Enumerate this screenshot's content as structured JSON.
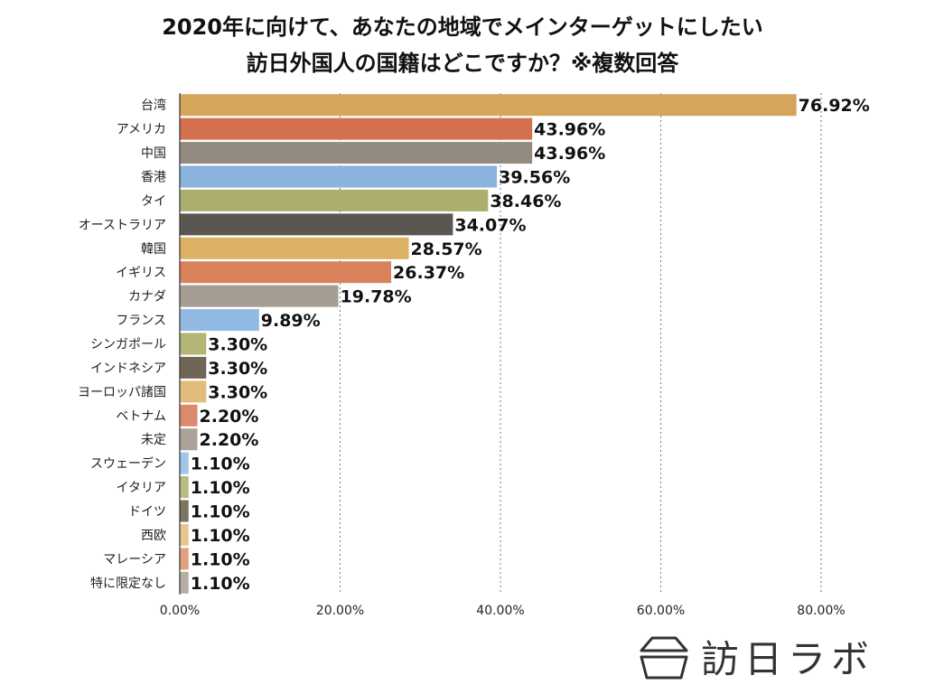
{
  "title": {
    "line1": "2020年に向けて、あなたの地域でメインターゲットにしたい",
    "line2": "訪日外国人の国籍はどこですか？※複数回答"
  },
  "logo": {
    "text": "訪日ラボ",
    "icon": "box-logo-icon"
  },
  "chart_data": {
    "type": "bar",
    "orientation": "horizontal",
    "title": "2020年に向けて、あなたの地域でメインターゲットにしたい訪日外国人の国籍はどこですか？※複数回答",
    "categories": [
      "台湾",
      "アメリカ",
      "中国",
      "香港",
      "タイ",
      "オーストラリア",
      "韓国",
      "イギリス",
      "カナダ",
      "フランス",
      "シンガポール",
      "インドネシア",
      "ヨーロッパ諸国",
      "ベトナム",
      "未定",
      "スウェーデン",
      "イタリア",
      "ドイツ",
      "西欧",
      "マレーシア",
      "特に限定なし"
    ],
    "values": [
      76.92,
      43.96,
      43.96,
      39.56,
      38.46,
      34.07,
      28.57,
      26.37,
      19.78,
      9.89,
      3.3,
      3.3,
      3.3,
      2.2,
      2.2,
      1.1,
      1.1,
      1.1,
      1.1,
      1.1,
      1.1
    ],
    "value_labels": [
      "76.92%",
      "43.96%",
      "43.96%",
      "39.56%",
      "38.46%",
      "34.07%",
      "28.57%",
      "26.37%",
      "19.78%",
      "9.89%",
      "3.30%",
      "3.30%",
      "3.30%",
      "2.20%",
      "2.20%",
      "1.10%",
      "1.10%",
      "1.10%",
      "1.10%",
      "1.10%",
      "1.10%"
    ],
    "colors": [
      "#D4A55A",
      "#D2704F",
      "#948B80",
      "#8BB3DE",
      "#ABAE6C",
      "#5C5650",
      "#DCB065",
      "#D9815A",
      "#A59C92",
      "#90BAE2",
      "#B2B574",
      "#706657",
      "#E2BC7A",
      "#DC8A6C",
      "#ACA398",
      "#9EC5EA",
      "#B9BC80",
      "#7C7462",
      "#E6C791",
      "#E0A17E",
      "#B6AEA4"
    ],
    "xlim": [
      0,
      80
    ],
    "xticks": [
      0,
      20,
      40,
      60,
      80
    ],
    "xtick_labels": [
      "0.00%",
      "20.00%",
      "40.00%",
      "60.00%",
      "80.00%"
    ],
    "grid": "vertical dotted",
    "xlabel": "",
    "ylabel": ""
  }
}
